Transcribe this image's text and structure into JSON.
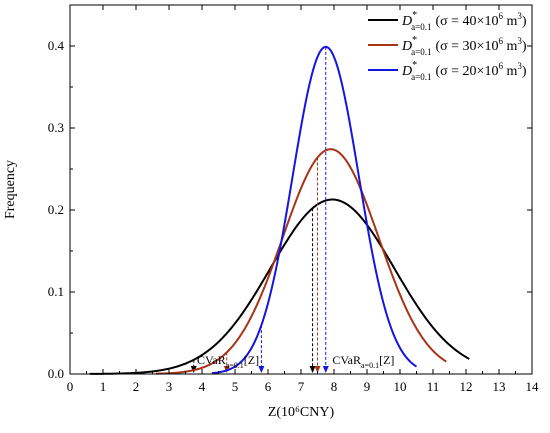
{
  "chart_data": {
    "type": "line",
    "xlabel": "Z(10⁶CNY)",
    "ylabel": "Frequency",
    "xlim": [
      0,
      14
    ],
    "ylim": [
      0,
      0.45
    ],
    "x_ticks": [
      0,
      1,
      2,
      3,
      4,
      5,
      6,
      7,
      8,
      9,
      10,
      11,
      12,
      13,
      14
    ],
    "y_ticks": [
      "0.0",
      "0.1",
      "0.2",
      "0.3",
      "0.4"
    ],
    "series": [
      {
        "name": "D*a=0.1 (σ = 40×10⁶ m³)",
        "color": "#000000",
        "mean": 7.95,
        "sd": 1.875,
        "x_range": [
          0.6,
          12.1
        ],
        "cvar": 3.75,
        "mean_marker": 7.35
      },
      {
        "name": "D*a=0.1 (σ = 30×10⁶ m³)",
        "color": "#a83318",
        "mean": 7.9,
        "sd": 1.455,
        "x_range": [
          2.6,
          11.4
        ],
        "cvar": 4.75,
        "mean_marker": 7.5
      },
      {
        "name": "D*a=0.1 (σ = 20×10⁶ m³)",
        "color": "#1515e0",
        "mean": 7.75,
        "sd": 1.0,
        "x_range": [
          4.3,
          10.5
        ],
        "cvar": 5.8,
        "mean_marker": 7.75
      }
    ],
    "legend": {
      "position": "top-right",
      "prefix": "D",
      "superscript": "*",
      "subscript": "a=0.1",
      "params": [
        "(σ = 40×10",
        "(σ = 30×10",
        "(σ = 20×10"
      ],
      "exp": "6",
      "unit": " m",
      "unit_exp": "3",
      "close": ")"
    },
    "annotations": {
      "cvar_main": "CVaR",
      "cvar_sub": "a=0.1",
      "cvar_tail": "[Z]",
      "cvar2_main": "CVaR",
      "cvar2_sub": "a=0.1",
      "cvar2_tail": "[Z]"
    }
  },
  "colors": {
    "axis": "#000000"
  }
}
